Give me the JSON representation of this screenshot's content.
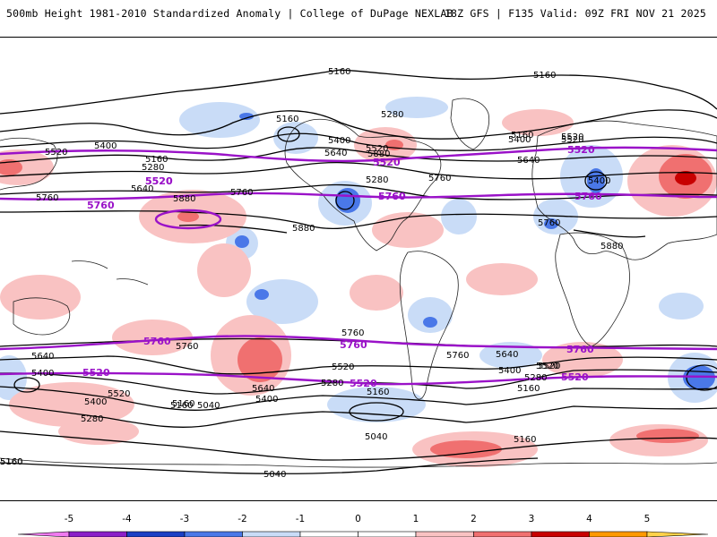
{
  "header": {
    "left_title": "500mb Height 1981-2010 Standardized Anomaly | College of DuPage NEXLAB",
    "right_title": "18Z GFS | F135 Valid: 09Z FRI NOV 21 2025"
  },
  "map": {
    "contour_labels_black": [
      "5160",
      "5160",
      "5160",
      "5280",
      "5160",
      "5400",
      "5640",
      "5520",
      "5400",
      "5520",
      "5160",
      "5280",
      "5640",
      "5520",
      "5400",
      "5640",
      "5760",
      "5520",
      "5400",
      "5880",
      "5760",
      "5880",
      "5760",
      "5880",
      "5760",
      "5880",
      "5280",
      "5400",
      "5640",
      "5760",
      "5640",
      "5400",
      "5520",
      "5520",
      "5280",
      "5160",
      "5040",
      "5160",
      "5040",
      "5160",
      "5040",
      "5160",
      "5280",
      "5640",
      "5400",
      "5760",
      "5520",
      "5280",
      "5520",
      "5400",
      "5160",
      "5160",
      "5160",
      "5760"
    ],
    "contour_labels_purple": [
      "5520",
      "5760",
      "5520",
      "5760",
      "5760",
      "5520",
      "5760",
      "5520",
      "5760",
      "5760",
      "5520",
      "5520",
      "5520",
      "5760"
    ]
  },
  "colorbar": {
    "ticks": [
      "-5",
      "-4",
      "-3",
      "-2",
      "-1",
      "0",
      "1",
      "2",
      "3",
      "4",
      "5"
    ],
    "colors": [
      "#f07af0",
      "#8b1fc8",
      "#1a3fc4",
      "#4a78e8",
      "#c9dcf7",
      "#ffffff",
      "#ffffff",
      "#f9c2c2",
      "#f07070",
      "#c80000",
      "#ff9900",
      "#ffd24a"
    ]
  }
}
